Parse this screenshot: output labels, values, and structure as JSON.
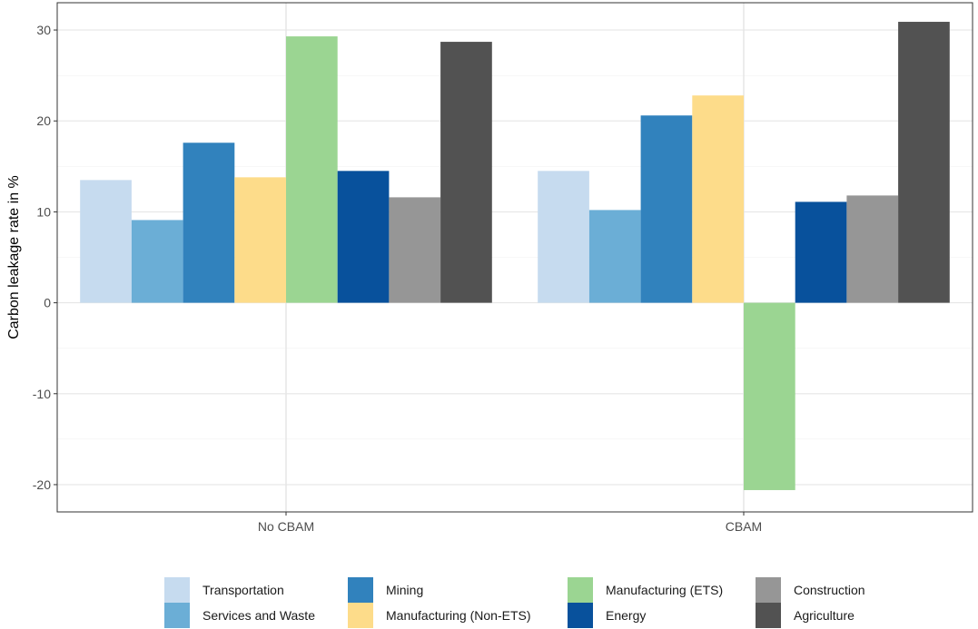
{
  "chart_data": {
    "type": "bar",
    "categories": [
      "No CBAM",
      "CBAM"
    ],
    "ylabel": "Carbon leakage rate in %",
    "xlabel": "",
    "ylim": [
      -23,
      33
    ],
    "yticks": [
      -20,
      -10,
      0,
      10,
      20,
      30
    ],
    "grid": true,
    "legend_position": "bottom",
    "series": [
      {
        "name": "Transportation",
        "color": "#c6dbef",
        "values": [
          13.5,
          14.5
        ]
      },
      {
        "name": "Services and Waste",
        "color": "#6baed6",
        "values": [
          9.1,
          10.2
        ]
      },
      {
        "name": "Mining",
        "color": "#3182bd",
        "values": [
          17.6,
          20.6
        ]
      },
      {
        "name": "Manufacturing (Non-ETS)",
        "color": "#fddc8a",
        "values": [
          13.8,
          22.8
        ]
      },
      {
        "name": "Manufacturing (ETS)",
        "color": "#9bd592",
        "values": [
          29.3,
          -20.6
        ]
      },
      {
        "name": "Energy",
        "color": "#08519c",
        "values": [
          14.5,
          11.1
        ]
      },
      {
        "name": "Construction",
        "color": "#969696",
        "values": [
          11.6,
          11.8
        ]
      },
      {
        "name": "Agriculture",
        "color": "#525252",
        "values": [
          28.7,
          30.9
        ]
      }
    ]
  }
}
